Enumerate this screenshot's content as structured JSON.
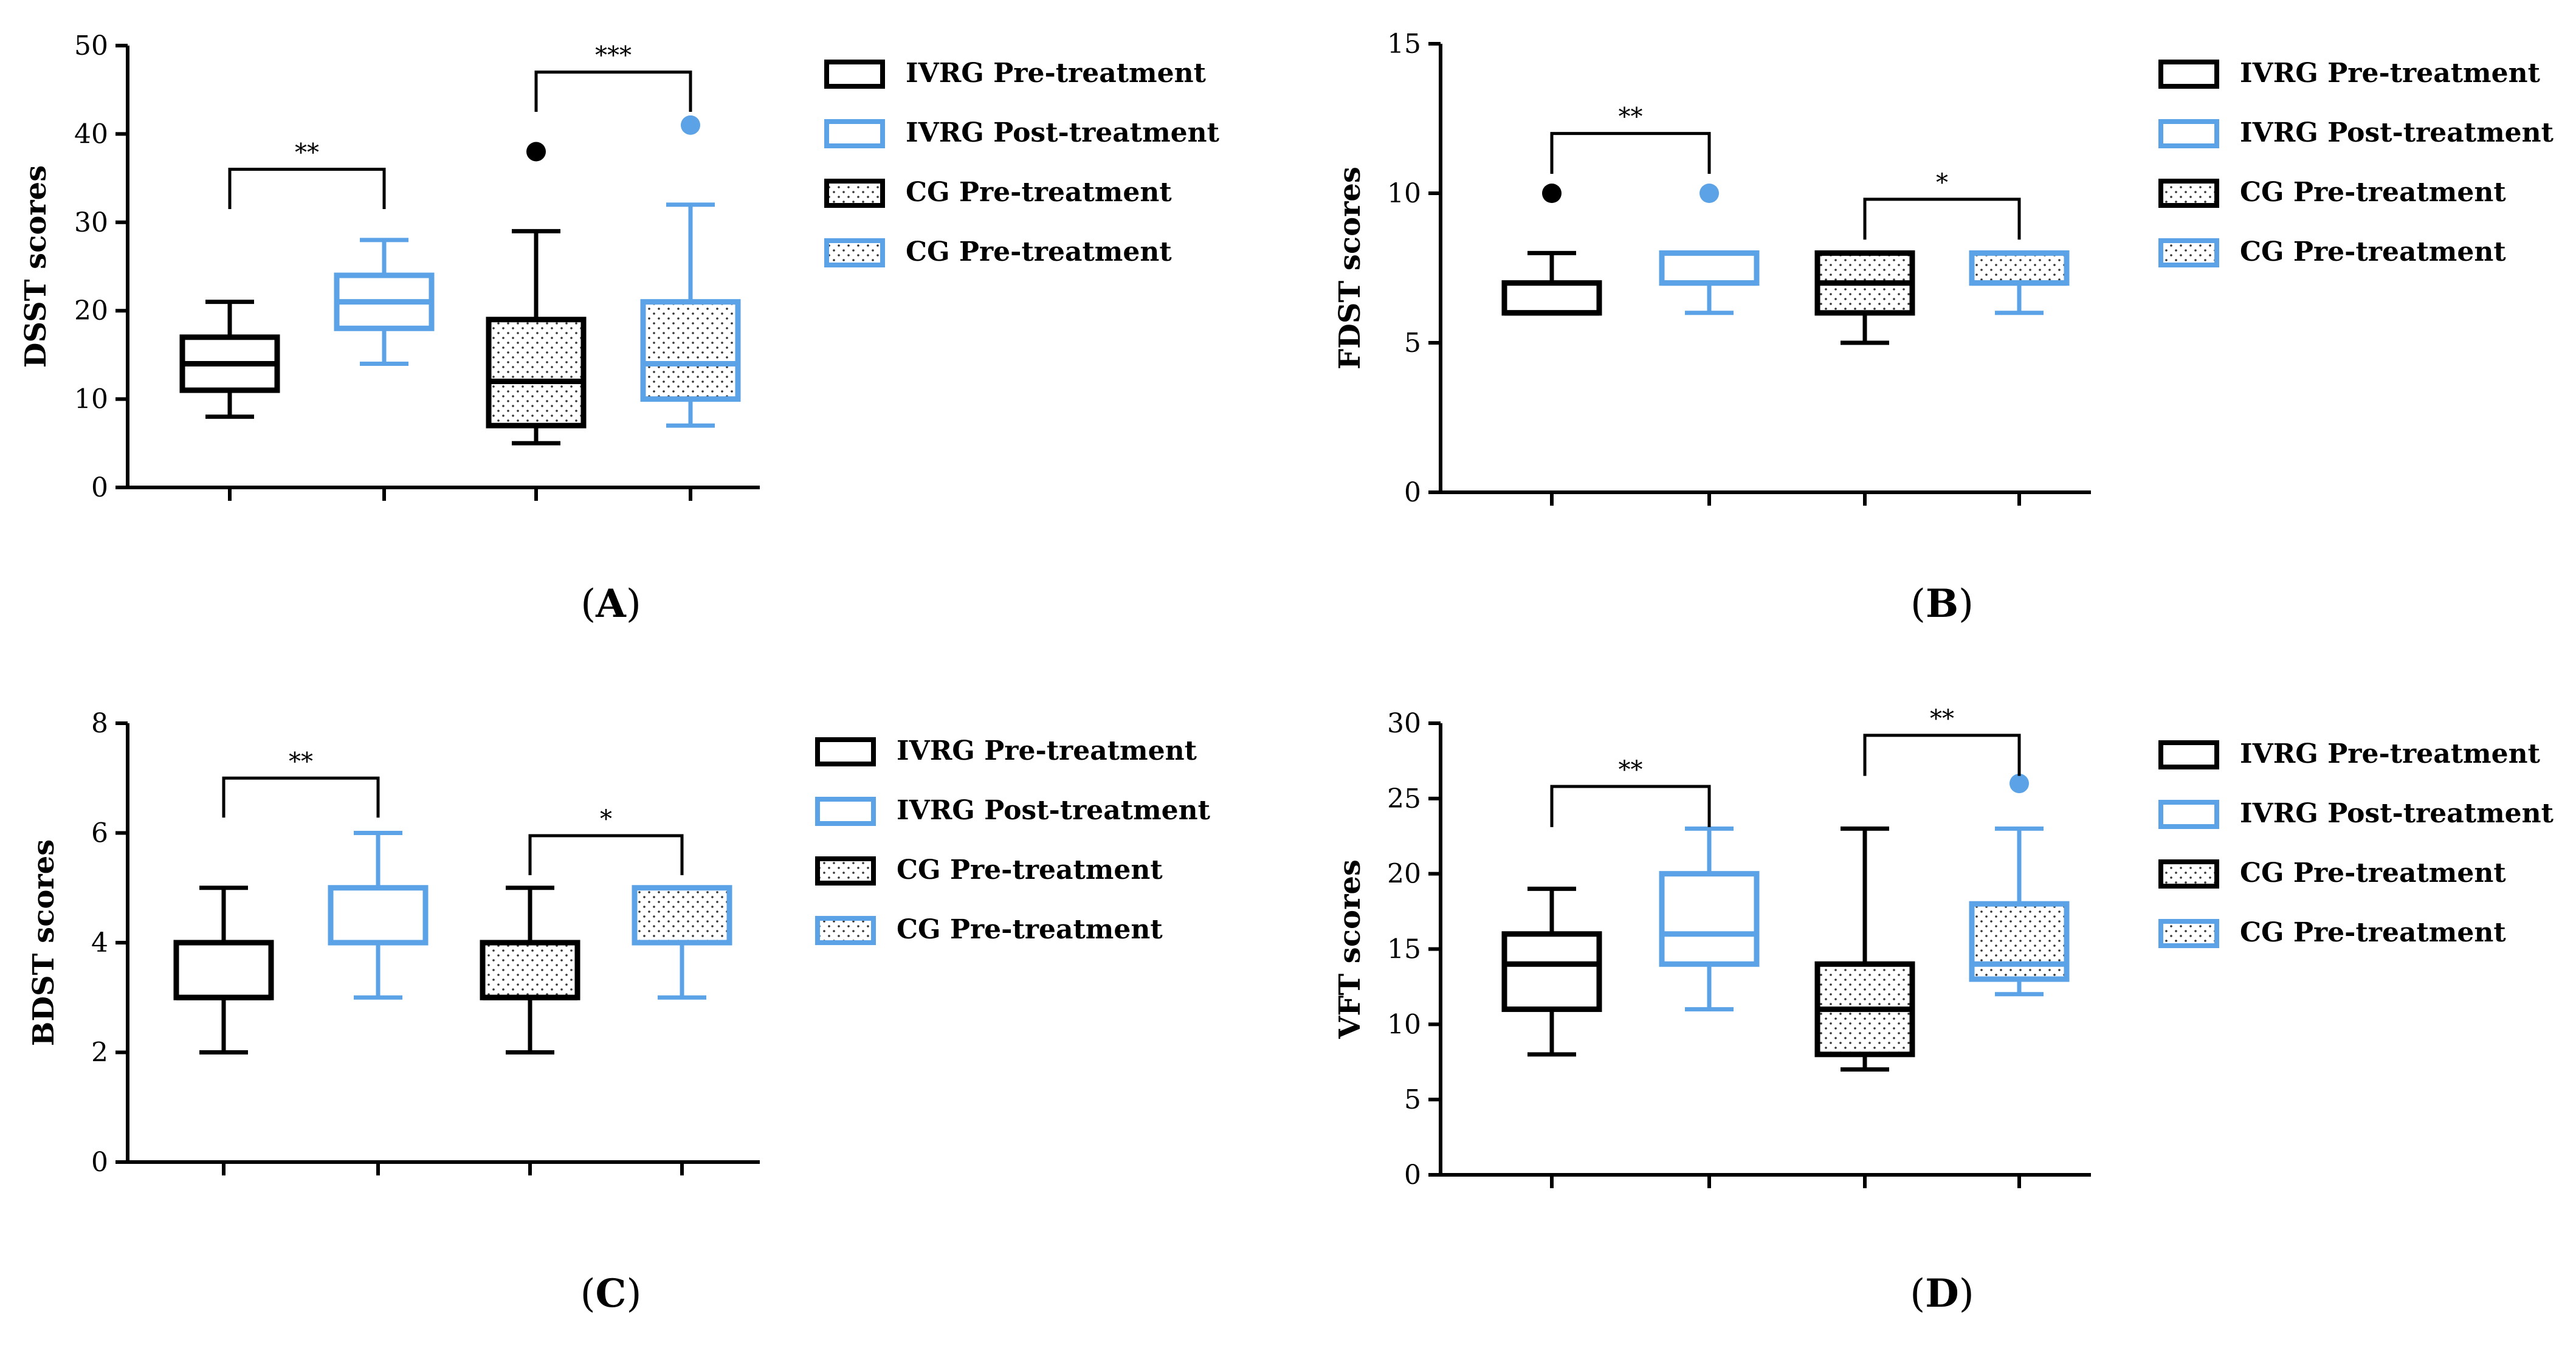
{
  "colors": {
    "pre": "#000000",
    "post": "#5BA3E6"
  },
  "chart_data": [
    {
      "panel": "A",
      "type": "box",
      "ylabel": "DSST scores",
      "ylim": [
        0,
        50
      ],
      "yticks": [
        0,
        10,
        20,
        30,
        40,
        50
      ],
      "categories": [
        "IVRG Pre-treatment",
        "IVRG Post-treatment",
        "CG Pre-treatment",
        "CG Pre-treatment"
      ],
      "legend": [
        "IVRG Pre-treatment",
        "IVRG Post-treatment",
        "CG Pre-treatment",
        "CG Pre-treatment"
      ],
      "boxes": [
        {
          "min": 8,
          "q1": 11,
          "median": 14,
          "q3": 17,
          "max": 21,
          "outliers": [],
          "color": "pre",
          "dotted": false
        },
        {
          "min": 14,
          "q1": 18,
          "median": 21,
          "q3": 24,
          "max": 28,
          "outliers": [],
          "color": "post",
          "dotted": false
        },
        {
          "min": 5,
          "q1": 7,
          "median": 12,
          "q3": 19,
          "max": 29,
          "outliers": [
            38
          ],
          "color": "pre",
          "dotted": true
        },
        {
          "min": 7,
          "q1": 10,
          "median": 14,
          "q3": 21,
          "max": 32,
          "outliers": [
            41
          ],
          "color": "post",
          "dotted": true
        }
      ],
      "significance": [
        {
          "from": 0,
          "to": 1,
          "label": "**",
          "y": 36
        },
        {
          "from": 2,
          "to": 3,
          "label": "***",
          "y": 47
        }
      ]
    },
    {
      "panel": "B",
      "type": "box",
      "ylabel": "FDST scores",
      "ylim": [
        0,
        15
      ],
      "yticks": [
        0,
        5,
        10,
        15
      ],
      "categories": [
        "IVRG Pre-treatment",
        "IVRG Post-treatment",
        "CG  Pre-treatment",
        "CG  Pre-treatment"
      ],
      "legend": [
        "IVRG Pre-treatment",
        "IVRG Post-treatment",
        "CG  Pre-treatment",
        "CG  Pre-treatment"
      ],
      "boxes": [
        {
          "min": 6,
          "q1": 6,
          "median": 6,
          "q3": 7,
          "max": 8,
          "outliers": [
            10
          ],
          "color": "pre",
          "dotted": false
        },
        {
          "min": 6,
          "q1": 7,
          "median": 7,
          "q3": 8,
          "max": 8,
          "outliers": [
            10
          ],
          "color": "post",
          "dotted": false
        },
        {
          "min": 5,
          "q1": 6,
          "median": 7,
          "q3": 8,
          "max": 8,
          "outliers": [],
          "color": "pre",
          "dotted": true
        },
        {
          "min": 6,
          "q1": 7,
          "median": 7,
          "q3": 8,
          "max": 8,
          "outliers": [],
          "color": "post",
          "dotted": true
        }
      ],
      "significance": [
        {
          "from": 0,
          "to": 1,
          "label": "**",
          "y": 12
        },
        {
          "from": 2,
          "to": 3,
          "label": "*",
          "y": 9.8
        }
      ]
    },
    {
      "panel": "C",
      "type": "box",
      "ylabel": "BDST scores",
      "ylim": [
        0,
        8
      ],
      "yticks": [
        0,
        2,
        4,
        6,
        8
      ],
      "categories": [
        "IVRG Pre-treatment",
        "IVRG Post-treatment",
        "CG Pre-treatment",
        "CG Pre-treatment"
      ],
      "legend": [
        "IVRG Pre-treatment",
        "IVRG Post-treatment",
        "CG Pre-treatment",
        "CG Pre-treatment"
      ],
      "boxes": [
        {
          "min": 2,
          "q1": 3,
          "median": 3,
          "q3": 4,
          "max": 5,
          "outliers": [],
          "color": "pre",
          "dotted": false
        },
        {
          "min": 3,
          "q1": 4,
          "median": 4,
          "q3": 5,
          "max": 6,
          "outliers": [],
          "color": "post",
          "dotted": false
        },
        {
          "min": 2,
          "q1": 3,
          "median": 3,
          "q3": 4,
          "max": 5,
          "outliers": [],
          "color": "pre",
          "dotted": true
        },
        {
          "min": 3,
          "q1": 4,
          "median": 4,
          "q3": 5,
          "max": 5,
          "outliers": [],
          "color": "post",
          "dotted": true
        }
      ],
      "significance": [
        {
          "from": 0,
          "to": 1,
          "label": "**",
          "y": 7.0
        },
        {
          "from": 2,
          "to": 3,
          "label": "*",
          "y": 5.95
        }
      ]
    },
    {
      "panel": "D",
      "type": "box",
      "ylabel": "VFT scores",
      "ylim": [
        0,
        30
      ],
      "yticks": [
        0,
        5,
        10,
        15,
        20,
        25,
        30
      ],
      "categories": [
        "IVRG Pre-treatment",
        "IVRG Post-treatment",
        "CG Pre-treatment",
        "CG Pre-treatment"
      ],
      "legend": [
        "IVRG Pre-treatment",
        "IVRG Post-treatment",
        "CG Pre-treatment",
        "CG Pre-treatment"
      ],
      "boxes": [
        {
          "min": 8,
          "q1": 11,
          "median": 14,
          "q3": 16,
          "max": 19,
          "outliers": [],
          "color": "pre",
          "dotted": false
        },
        {
          "min": 11,
          "q1": 14,
          "median": 16,
          "q3": 20,
          "max": 23,
          "outliers": [],
          "color": "post",
          "dotted": false
        },
        {
          "min": 7,
          "q1": 8,
          "median": 11,
          "q3": 14,
          "max": 23,
          "outliers": [],
          "color": "pre",
          "dotted": true
        },
        {
          "min": 12,
          "q1": 13,
          "median": 14,
          "q3": 18,
          "max": 23,
          "outliers": [
            26
          ],
          "color": "post",
          "dotted": true
        }
      ],
      "significance": [
        {
          "from": 0,
          "to": 1,
          "label": "**",
          "y": 25.8
        },
        {
          "from": 2,
          "to": 3,
          "label": "**",
          "y": 29.2
        }
      ]
    }
  ]
}
